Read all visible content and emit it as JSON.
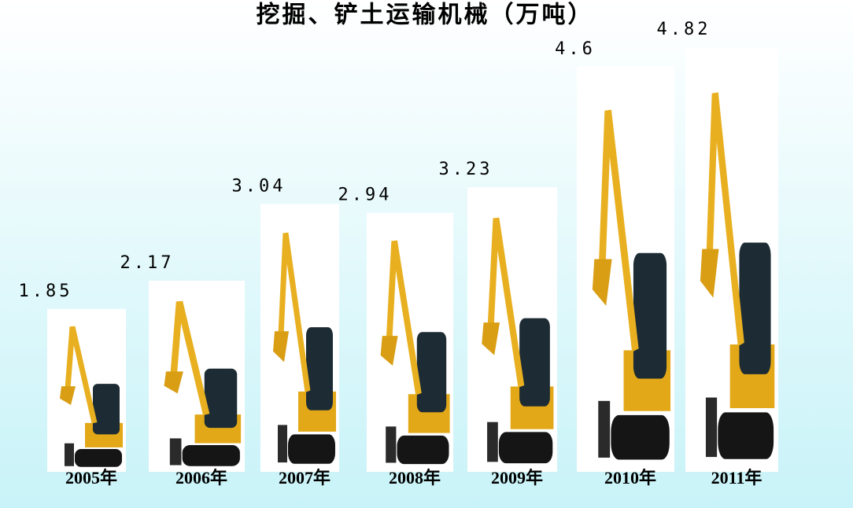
{
  "chart_data": {
    "type": "bar",
    "title": "挖掘、铲土运输机械（万吨）",
    "categories": [
      "2005年",
      "2006年",
      "2007年",
      "2008年",
      "2009年",
      "2010年",
      "2011年"
    ],
    "values": [
      1.85,
      2.17,
      3.04,
      2.94,
      3.23,
      4.6,
      4.82
    ],
    "color": "#ffffff"
  }
}
